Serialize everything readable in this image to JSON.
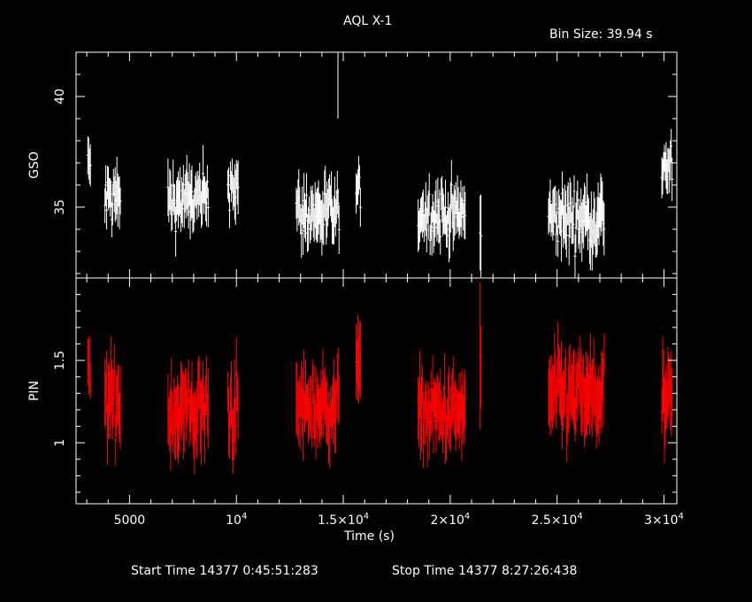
{
  "chart_data": {
    "type": "scatter",
    "title": "AQL X-1",
    "subtitle": "Bin Size: 39.94 s",
    "xlabel": "Time (s)",
    "xlim": [
      2500,
      30600
    ],
    "x_ticks": [
      {
        "value": 5000,
        "label": "5000",
        "exp": ""
      },
      {
        "value": 10000,
        "label": "10",
        "exp": "4"
      },
      {
        "value": 15000,
        "label": "1.5×10",
        "exp": "4"
      },
      {
        "value": 20000,
        "label": "2×10",
        "exp": "4"
      },
      {
        "value": 25000,
        "label": "2.5×10",
        "exp": "4"
      },
      {
        "value": 30000,
        "label": "3×10",
        "exp": "4"
      }
    ],
    "footer": {
      "start": "Start Time 14377  0:45:51:283",
      "stop": "Stop Time 14377  8:27:26:438"
    },
    "panels": [
      {
        "name": "GSO",
        "ylabel": "GSO",
        "color": "#ffffff",
        "ylim": [
          31.8,
          42.0
        ],
        "y_ticks": [
          {
            "value": 35,
            "label": "35"
          },
          {
            "value": 40,
            "label": "40"
          }
        ],
        "segments": [
          {
            "t0": 3050,
            "t1": 3200,
            "level": 36.8,
            "noise": 0.9,
            "err": 0.8
          },
          {
            "t0": 3850,
            "t1": 4600,
            "level": 35.4,
            "noise": 1.0,
            "err": 1.0
          },
          {
            "t0": 6800,
            "t1": 8700,
            "level": 35.3,
            "noise": 0.9,
            "err": 1.0
          },
          {
            "t0": 9600,
            "t1": 10100,
            "level": 36.1,
            "noise": 0.9,
            "err": 1.0
          },
          {
            "t0": 12800,
            "t1": 14800,
            "level": 34.7,
            "noise": 1.0,
            "err": 1.0
          },
          {
            "t0": 15600,
            "t1": 15800,
            "level": 35.6,
            "noise": 0.6,
            "err": 0.9
          },
          {
            "t0": 18500,
            "t1": 20700,
            "level": 34.7,
            "noise": 0.9,
            "err": 1.0
          },
          {
            "t0": 21400,
            "t1": 21450,
            "level": 33.8,
            "noise": 0.3,
            "err": 1.5
          },
          {
            "t0": 24600,
            "t1": 27200,
            "level": 34.5,
            "noise": 1.0,
            "err": 1.1
          },
          {
            "t0": 29900,
            "t1": 30400,
            "level": 36.8,
            "noise": 0.8,
            "err": 0.9
          }
        ],
        "spike": {
          "t": 14750,
          "level": 40.8,
          "err": 1.8
        }
      },
      {
        "name": "PIN",
        "ylabel": "PIN",
        "color": "#ff0000",
        "ylim": [
          0.63,
          2.0
        ],
        "y_ticks": [
          {
            "value": 1,
            "label": "1"
          },
          {
            "value": 1.5,
            "label": "1.5"
          }
        ],
        "segments": [
          {
            "t0": 3050,
            "t1": 3200,
            "level": 1.4,
            "noise": 0.12,
            "err": 0.15
          },
          {
            "t0": 3850,
            "t1": 4600,
            "level": 1.25,
            "noise": 0.15,
            "err": 0.2
          },
          {
            "t0": 6800,
            "t1": 8700,
            "level": 1.2,
            "noise": 0.17,
            "err": 0.2
          },
          {
            "t0": 9600,
            "t1": 10100,
            "level": 1.2,
            "noise": 0.17,
            "err": 0.2
          },
          {
            "t0": 12800,
            "t1": 14800,
            "level": 1.22,
            "noise": 0.14,
            "err": 0.18
          },
          {
            "t0": 15600,
            "t1": 15800,
            "level": 1.55,
            "noise": 0.1,
            "err": 0.2
          },
          {
            "t0": 18500,
            "t1": 20700,
            "level": 1.18,
            "noise": 0.14,
            "err": 0.18
          },
          {
            "t0": 21400,
            "t1": 21450,
            "level": 1.5,
            "noise": 0.12,
            "err": 0.35
          },
          {
            "t0": 24600,
            "t1": 27200,
            "level": 1.28,
            "noise": 0.16,
            "err": 0.2
          },
          {
            "t0": 29900,
            "t1": 30400,
            "level": 1.25,
            "noise": 0.15,
            "err": 0.2
          }
        ]
      }
    ]
  }
}
